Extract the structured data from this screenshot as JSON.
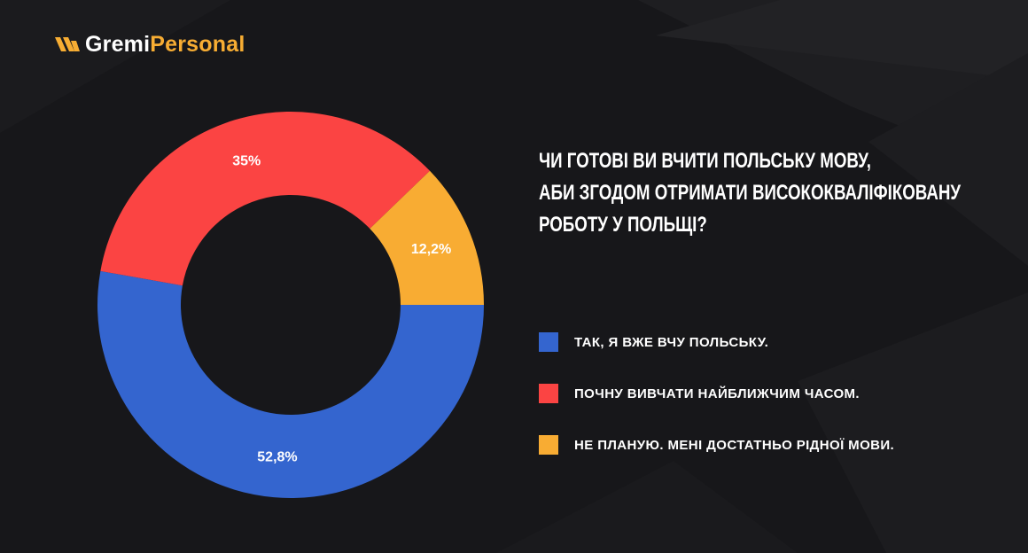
{
  "brand": {
    "name_part1": "Gremi",
    "name_part2": "Personal",
    "accent_color": "#f7ad33"
  },
  "question_lines": [
    "Чи готові ви вчити польську мову,",
    "аби згодом отримати висококваліфіковану",
    "роботу у Польщі?"
  ],
  "chart_data": {
    "type": "pie",
    "donut": true,
    "series": [
      {
        "label": "Так, я вже вчу польську.",
        "value": 52.8,
        "value_label": "52,8%",
        "color": "#3465cf"
      },
      {
        "label": "Почну вивчати найближчим часом.",
        "value": 35,
        "value_label": "35%",
        "color": "#fb4443"
      },
      {
        "label": "Не планую. Мені достатньо рідної мови.",
        "value": 12.2,
        "value_label": "12,2%",
        "color": "#f8ac33"
      }
    ]
  },
  "colors": {
    "background": "#17171a",
    "text": "#ffffff"
  }
}
